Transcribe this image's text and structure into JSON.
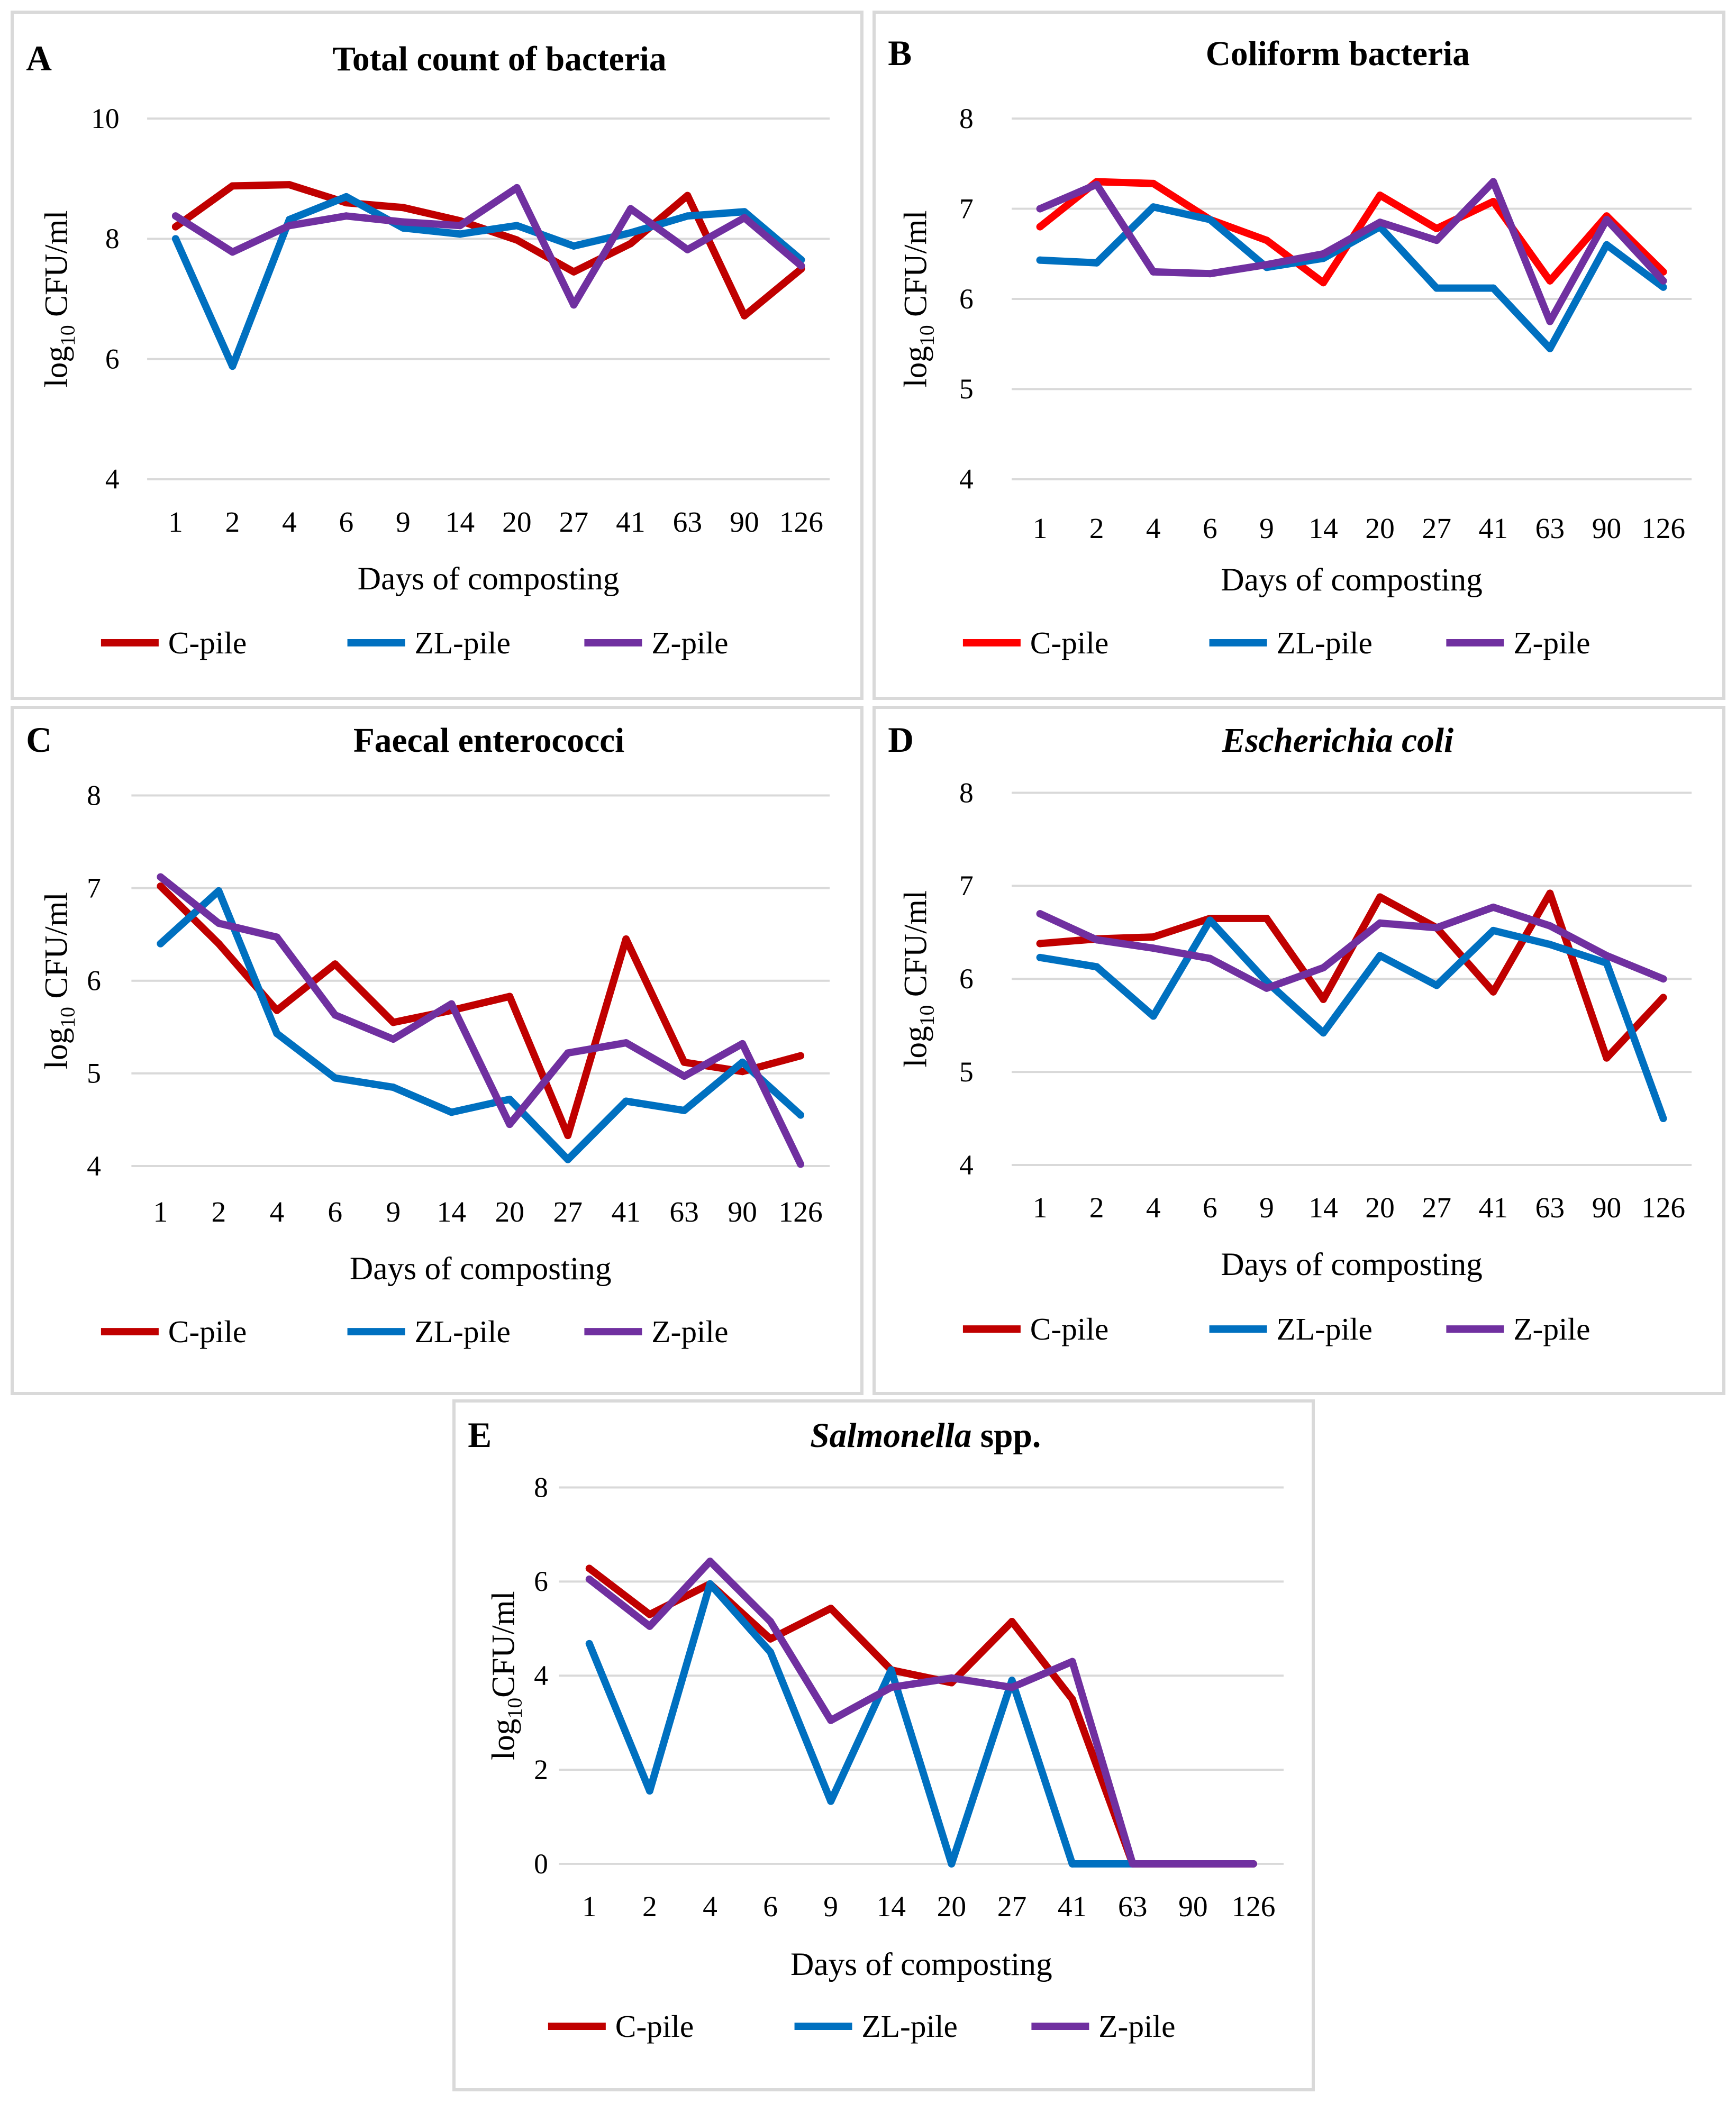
{
  "chart_data": [
    {
      "id": "A",
      "panel_letter": "A",
      "type": "line",
      "title_parts": [
        {
          "text": "Total count of bacteria",
          "italic": false
        }
      ],
      "ylabel_main": "log",
      "ylabel_sub": "10",
      "ylabel_rest": " CFU/ml",
      "xlabel": "Days of composting",
      "categories": [
        "1",
        "2",
        "4",
        "6",
        "9",
        "14",
        "20",
        "27",
        "41",
        "63",
        "90",
        "126"
      ],
      "ylim": [
        4,
        10
      ],
      "yticks": [
        "4",
        "6",
        "8",
        "10"
      ],
      "grid": true,
      "legend_position": "bottom",
      "series": [
        {
          "name": "C-pile",
          "color": "#c00000",
          "values": [
            8.2,
            8.88,
            8.9,
            8.6,
            8.52,
            8.3,
            7.98,
            7.45,
            7.92,
            8.72,
            6.72,
            7.5
          ]
        },
        {
          "name": "ZL-pile",
          "color": "#0070c0",
          "values": [
            8.0,
            5.88,
            8.32,
            8.7,
            8.18,
            8.08,
            8.22,
            7.88,
            8.1,
            8.38,
            8.45,
            7.65
          ]
        },
        {
          "name": "Z-pile",
          "color": "#7030a0",
          "values": [
            8.38,
            7.78,
            8.22,
            8.38,
            8.28,
            8.22,
            8.85,
            6.9,
            8.5,
            7.82,
            8.35,
            7.55
          ]
        }
      ]
    },
    {
      "id": "B",
      "panel_letter": "B",
      "type": "line",
      "title_parts": [
        {
          "text": "Coliform bacteria",
          "italic": false
        }
      ],
      "ylabel_main": "log",
      "ylabel_sub": "10",
      "ylabel_rest": " CFU/ml",
      "xlabel": "Days of composting",
      "categories": [
        "1",
        "2",
        "4",
        "6",
        "9",
        "14",
        "20",
        "27",
        "41",
        "63",
        "90",
        "126"
      ],
      "ylim": [
        4,
        8
      ],
      "yticks": [
        "4",
        "5",
        "6",
        "7",
        "8"
      ],
      "grid": true,
      "legend_position": "bottom",
      "series": [
        {
          "name": "C-pile",
          "color": "#ff0000",
          "values": [
            6.8,
            7.3,
            7.28,
            6.88,
            6.65,
            6.18,
            7.15,
            6.78,
            7.08,
            6.2,
            6.92,
            6.3
          ]
        },
        {
          "name": "ZL-pile",
          "color": "#0070c0",
          "values": [
            6.43,
            6.4,
            7.02,
            6.88,
            6.35,
            6.45,
            6.8,
            6.12,
            6.12,
            5.45,
            6.6,
            6.13
          ]
        },
        {
          "name": "Z-pile",
          "color": "#7030a0",
          "values": [
            7.0,
            7.27,
            6.3,
            6.28,
            6.38,
            6.5,
            6.85,
            6.65,
            7.3,
            5.75,
            6.88,
            6.2
          ]
        }
      ]
    },
    {
      "id": "C",
      "panel_letter": "C",
      "type": "line",
      "title_parts": [
        {
          "text": "Faecal enterococci",
          "italic": false
        }
      ],
      "ylabel_main": "log",
      "ylabel_sub": "10",
      "ylabel_rest": " CFU/ml",
      "xlabel": "Days of composting",
      "categories": [
        "1",
        "2",
        "4",
        "6",
        "9",
        "14",
        "20",
        "27",
        "41",
        "63",
        "90",
        "126"
      ],
      "ylim": [
        4,
        8
      ],
      "yticks": [
        "4",
        "5",
        "6",
        "7",
        "8"
      ],
      "grid": true,
      "legend_position": "bottom",
      "series": [
        {
          "name": "C-pile",
          "color": "#c00000",
          "values": [
            7.02,
            6.4,
            5.68,
            6.18,
            5.55,
            5.68,
            5.83,
            4.33,
            6.45,
            5.12,
            5.02,
            5.19
          ]
        },
        {
          "name": "ZL-pile",
          "color": "#0070c0",
          "values": [
            6.4,
            6.97,
            5.43,
            4.95,
            4.85,
            4.58,
            4.72,
            4.07,
            4.7,
            4.6,
            5.12,
            4.55
          ]
        },
        {
          "name": "Z-pile",
          "color": "#7030a0",
          "values": [
            7.12,
            6.62,
            6.47,
            5.63,
            5.37,
            5.75,
            4.45,
            5.22,
            5.33,
            4.97,
            5.32,
            4.02
          ]
        }
      ]
    },
    {
      "id": "D",
      "panel_letter": "D",
      "type": "line",
      "title_parts": [
        {
          "text": "Escherichia coli",
          "italic": true
        }
      ],
      "ylabel_main": "log",
      "ylabel_sub": "10",
      "ylabel_rest": " CFU/ml",
      "xlabel": "Days of composting",
      "categories": [
        "1",
        "2",
        "4",
        "6",
        "9",
        "14",
        "20",
        "27",
        "41",
        "63",
        "90",
        "126"
      ],
      "ylim": [
        4,
        8
      ],
      "yticks": [
        "4",
        "5",
        "6",
        "7",
        "8"
      ],
      "grid": true,
      "legend_position": "bottom",
      "series": [
        {
          "name": "C-pile",
          "color": "#c00000",
          "values": [
            6.38,
            6.43,
            6.45,
            6.65,
            6.65,
            5.78,
            6.88,
            6.55,
            5.86,
            6.92,
            5.15,
            5.8
          ]
        },
        {
          "name": "ZL-pile",
          "color": "#0070c0",
          "values": [
            6.23,
            6.13,
            5.6,
            6.63,
            5.97,
            5.42,
            6.25,
            5.93,
            6.52,
            6.37,
            6.17,
            4.5
          ]
        },
        {
          "name": "Z-pile",
          "color": "#7030a0",
          "values": [
            6.7,
            6.42,
            6.33,
            6.22,
            5.9,
            6.12,
            6.6,
            6.55,
            6.77,
            6.57,
            6.25,
            6.0
          ]
        }
      ]
    },
    {
      "id": "E",
      "panel_letter": "E",
      "type": "line",
      "title_parts": [
        {
          "text": "Salmonella",
          "italic": true
        },
        {
          "text": " spp.",
          "italic": false
        }
      ],
      "ylabel_main": "log",
      "ylabel_sub": "10",
      "ylabel_rest": "CFU/ml",
      "xlabel": "Days of composting",
      "categories": [
        "1",
        "2",
        "4",
        "6",
        "9",
        "14",
        "20",
        "27",
        "41",
        "63",
        "90",
        "126"
      ],
      "ylim": [
        0,
        8
      ],
      "yticks": [
        "0",
        "2",
        "4",
        "6",
        "8"
      ],
      "grid": true,
      "legend_position": "bottom",
      "series": [
        {
          "name": "C-pile",
          "color": "#c00000",
          "values": [
            6.28,
            5.3,
            5.95,
            4.78,
            5.43,
            4.12,
            3.85,
            5.15,
            3.5,
            0,
            0,
            0
          ]
        },
        {
          "name": "ZL-pile",
          "color": "#0070c0",
          "values": [
            4.68,
            1.55,
            5.95,
            4.5,
            1.33,
            4.12,
            0,
            3.9,
            0,
            0,
            null,
            null
          ]
        },
        {
          "name": "Z-pile",
          "color": "#7030a0",
          "values": [
            6.05,
            5.05,
            6.43,
            5.15,
            3.05,
            3.75,
            3.95,
            3.75,
            4.3,
            0,
            0,
            0
          ]
        }
      ]
    }
  ]
}
